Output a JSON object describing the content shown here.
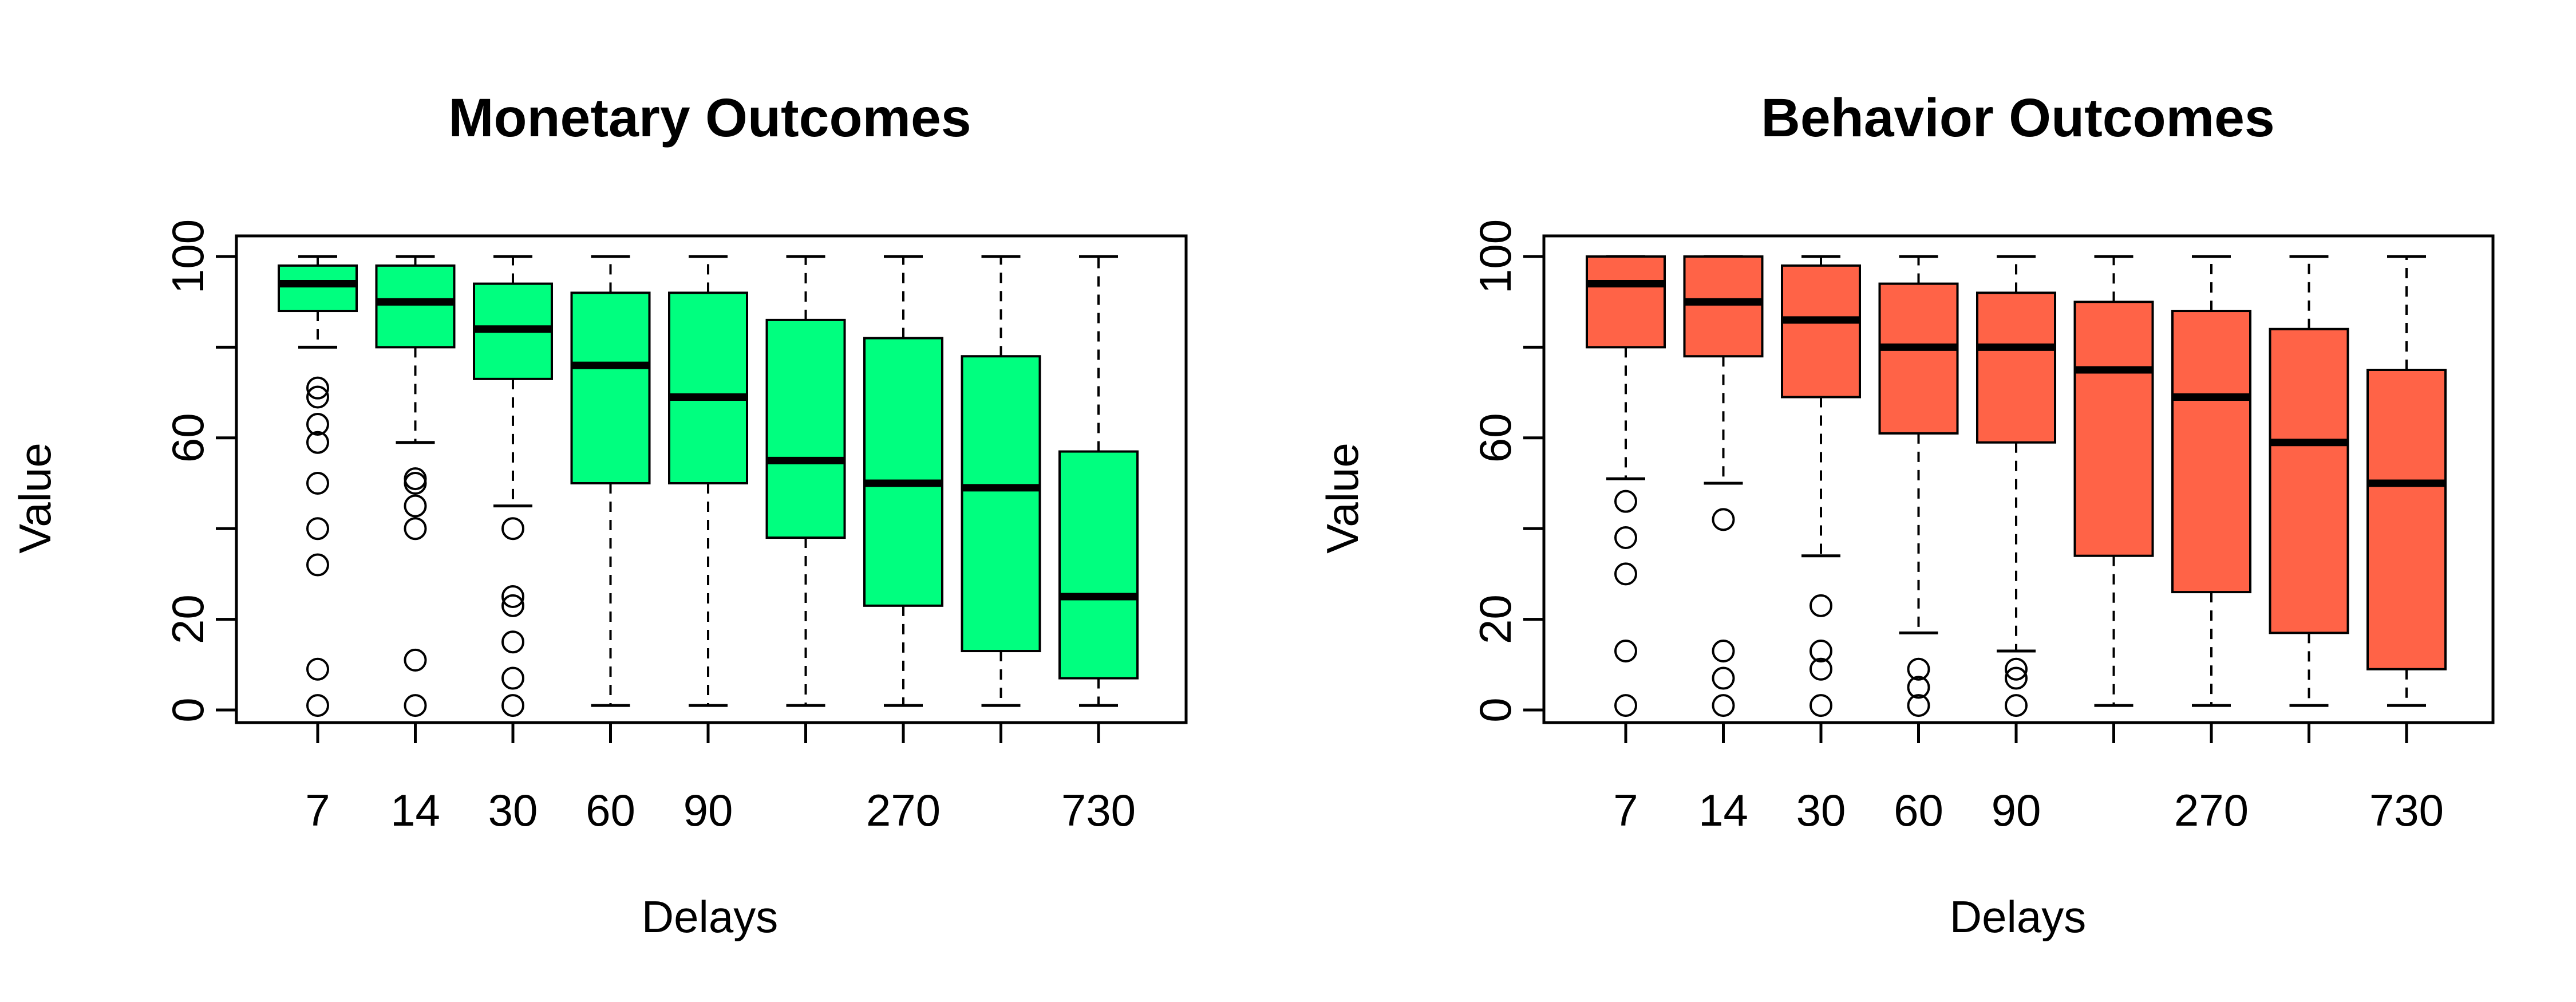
{
  "chart_data": [
    {
      "type": "boxplot",
      "title": "Monetary Outcomes",
      "xlabel": "Delays",
      "ylabel": "Value",
      "ylim": [
        0,
        100
      ],
      "yticks": [
        "0",
        "20",
        "60",
        "100"
      ],
      "xtick_labels": [
        "7",
        "14",
        "30",
        "60",
        "90",
        "",
        "270",
        "",
        "730"
      ],
      "fill_color": "#00FF7F",
      "groups": [
        {
          "q1": 88,
          "median": 94,
          "q3": 98,
          "whisker_low": 80,
          "whisker_high": 100,
          "outliers": [
            71,
            69,
            63,
            59,
            50,
            40,
            32,
            9,
            1
          ]
        },
        {
          "q1": 80,
          "median": 90,
          "q3": 98,
          "whisker_low": 59,
          "whisker_high": 100,
          "outliers": [
            51,
            50,
            45,
            40,
            11,
            1
          ]
        },
        {
          "q1": 73,
          "median": 84,
          "q3": 94,
          "whisker_low": 45,
          "whisker_high": 100,
          "outliers": [
            40,
            25,
            23,
            15,
            7,
            1
          ]
        },
        {
          "q1": 50,
          "median": 76,
          "q3": 92,
          "whisker_low": 1,
          "whisker_high": 100,
          "outliers": []
        },
        {
          "q1": 50,
          "median": 69,
          "q3": 92,
          "whisker_low": 1,
          "whisker_high": 100,
          "outliers": []
        },
        {
          "q1": 38,
          "median": 55,
          "q3": 86,
          "whisker_low": 1,
          "whisker_high": 100,
          "outliers": []
        },
        {
          "q1": 23,
          "median": 50,
          "q3": 82,
          "whisker_low": 1,
          "whisker_high": 100,
          "outliers": []
        },
        {
          "q1": 13,
          "median": 49,
          "q3": 78,
          "whisker_low": 1,
          "whisker_high": 100,
          "outliers": []
        },
        {
          "q1": 7,
          "median": 25,
          "q3": 57,
          "whisker_low": 1,
          "whisker_high": 100,
          "outliers": []
        }
      ]
    },
    {
      "type": "boxplot",
      "title": "Behavior Outcomes",
      "xlabel": "Delays",
      "ylabel": "Value",
      "ylim": [
        0,
        100
      ],
      "yticks": [
        "0",
        "20",
        "60",
        "100"
      ],
      "xtick_labels": [
        "7",
        "14",
        "30",
        "60",
        "90",
        "",
        "270",
        "",
        "730"
      ],
      "fill_color": "#FF6347",
      "groups": [
        {
          "q1": 80,
          "median": 94,
          "q3": 100,
          "whisker_low": 51,
          "whisker_high": 100,
          "outliers": [
            46,
            38,
            30,
            13,
            1
          ]
        },
        {
          "q1": 78,
          "median": 90,
          "q3": 100,
          "whisker_low": 50,
          "whisker_high": 100,
          "outliers": [
            42,
            13,
            7,
            1
          ]
        },
        {
          "q1": 69,
          "median": 86,
          "q3": 98,
          "whisker_low": 34,
          "whisker_high": 100,
          "outliers": [
            23,
            13,
            9,
            1
          ]
        },
        {
          "q1": 61,
          "median": 80,
          "q3": 94,
          "whisker_low": 17,
          "whisker_high": 100,
          "outliers": [
            9,
            5,
            1
          ]
        },
        {
          "q1": 59,
          "median": 80,
          "q3": 92,
          "whisker_low": 13,
          "whisker_high": 100,
          "outliers": [
            9,
            7,
            1
          ]
        },
        {
          "q1": 34,
          "median": 75,
          "q3": 90,
          "whisker_low": 1,
          "whisker_high": 100,
          "outliers": []
        },
        {
          "q1": 26,
          "median": 69,
          "q3": 88,
          "whisker_low": 1,
          "whisker_high": 100,
          "outliers": []
        },
        {
          "q1": 17,
          "median": 59,
          "q3": 84,
          "whisker_low": 1,
          "whisker_high": 100,
          "outliers": []
        },
        {
          "q1": 9,
          "median": 50,
          "q3": 75,
          "whisker_low": 1,
          "whisker_high": 100,
          "outliers": []
        }
      ]
    }
  ]
}
